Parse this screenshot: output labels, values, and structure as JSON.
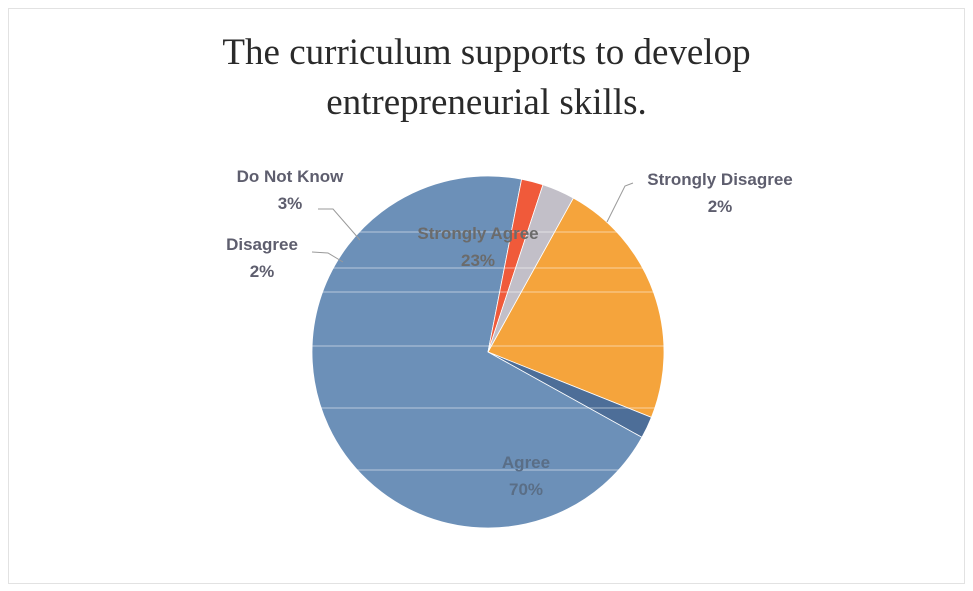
{
  "chart_data": {
    "type": "pie",
    "title": "The curriculum supports to develop\nentrepreneurial skills.",
    "slices": [
      {
        "label": "Strongly Agree",
        "value": 23,
        "value_label": "23%",
        "color": "#F5A43C",
        "label_color": "#6b6b6b"
      },
      {
        "label": "Strongly Disagree",
        "value": 2,
        "value_label": "2%",
        "color": "#4D6E98",
        "label_color": "#5e5e6e"
      },
      {
        "label": "Agree",
        "value": 70,
        "value_label": "70%",
        "color": "#6C90B8",
        "label_color": "#5a6e86"
      },
      {
        "label": "Disagree",
        "value": 2,
        "value_label": "2%",
        "color": "#F05A3A",
        "label_color": "#5e5e6e"
      },
      {
        "label": "Do Not Know",
        "value": 3,
        "value_label": "3%",
        "color": "#C2BFC8",
        "label_color": "#5e5e6e"
      }
    ]
  }
}
